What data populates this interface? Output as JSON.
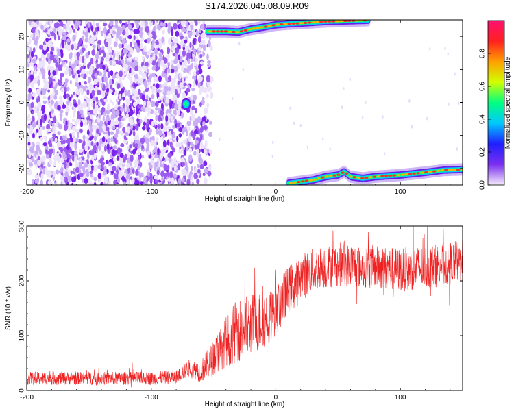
{
  "title": "S174.2026.045.08.09.R09",
  "chart_data": [
    {
      "type": "heatmap",
      "xlabel": "Height of straight line (km)",
      "ylabel": "Frequency (Hz)",
      "xlim": [
        -200,
        150
      ],
      "ylim": [
        -25,
        25
      ],
      "x_ticks": [
        -200,
        -100,
        0,
        100
      ],
      "y_ticks": [
        -20,
        -10,
        0,
        10,
        20
      ],
      "colorbar": {
        "label": "Normalized spectral amplitude",
        "range": [
          0,
          1
        ],
        "ticks": [
          "0.0",
          "0.2",
          "0.4",
          "0.6",
          "0.8"
        ],
        "tick_values": [
          0.0,
          0.2,
          0.4,
          0.6,
          0.8
        ],
        "colors": [
          "#f4ecfb",
          "#7b2ff0",
          "#1f1fff",
          "#00c8ff",
          "#00ff80",
          "#d0ff00",
          "#ffa000",
          "#ff2020",
          "#ff1070"
        ]
      },
      "noise_region": {
        "x": [
          -200,
          -50
        ],
        "y": [
          -25,
          25
        ],
        "mean_amplitude": 0.08
      },
      "features": [
        {
          "name": "",
          "x": [
            -55,
            75
          ],
          "y": [
            21.5,
            24.5
          ],
          "peak_amplitude": 0.9
        },
        {
          "name": "",
          "x": [
            10,
            150
          ],
          "y": [
            -24.5,
            -20.5
          ],
          "peak_amplitude": 0.9
        },
        {
          "name": "",
          "x": -72,
          "y": -0.5,
          "peak_amplitude": 0.45
        }
      ],
      "ridge_upper": [
        [
          -55,
          21.5
        ],
        [
          -40,
          21.5
        ],
        [
          -30,
          21.3
        ],
        [
          -20,
          22.2
        ],
        [
          -10,
          22.8
        ],
        [
          0,
          23.5
        ],
        [
          10,
          23.8
        ],
        [
          20,
          24.0
        ],
        [
          40,
          24.5
        ],
        [
          75,
          24.9
        ]
      ],
      "ridge_lower": [
        [
          10,
          -24.5
        ],
        [
          20,
          -24.0
        ],
        [
          30,
          -23.5
        ],
        [
          40,
          -22.5
        ],
        [
          50,
          -22.0
        ],
        [
          55,
          -21.0
        ],
        [
          60,
          -22.5
        ],
        [
          70,
          -23.0
        ],
        [
          80,
          -22.5
        ],
        [
          100,
          -22.0
        ],
        [
          120,
          -21.2
        ],
        [
          135,
          -20.5
        ],
        [
          150,
          -20.3
        ]
      ]
    },
    {
      "type": "line",
      "xlabel": "Height of straight line (km)",
      "ylabel": "SNR (10 * v/v)",
      "xlim": [
        -200,
        150
      ],
      "ylim": [
        0,
        300
      ],
      "x_ticks": [
        -200,
        -100,
        0,
        100
      ],
      "y_ticks": [
        0,
        100,
        200,
        300
      ],
      "series": [
        {
          "name": "",
          "color": "#ee2222",
          "envelope": [
            [
              -200,
              22
            ],
            [
              -150,
              22
            ],
            [
              -100,
              22
            ],
            [
              -80,
              25
            ],
            [
              -70,
              40
            ],
            [
              -60,
              35
            ],
            [
              -50,
              60
            ],
            [
              -40,
              90
            ],
            [
              -30,
              110
            ],
            [
              -20,
              120
            ],
            [
              -10,
              130
            ],
            [
              0,
              150
            ],
            [
              10,
              180
            ],
            [
              20,
              205
            ],
            [
              30,
              220
            ],
            [
              50,
              230
            ],
            [
              80,
              225
            ],
            [
              100,
              220
            ],
            [
              120,
              225
            ],
            [
              150,
              235
            ]
          ],
          "noise_amplitude": [
            [
              -200,
              12
            ],
            [
              -80,
              12
            ],
            [
              -60,
              20
            ],
            [
              -30,
              60
            ],
            [
              0,
              50
            ],
            [
              30,
              40
            ],
            [
              150,
              40
            ]
          ]
        }
      ]
    }
  ]
}
